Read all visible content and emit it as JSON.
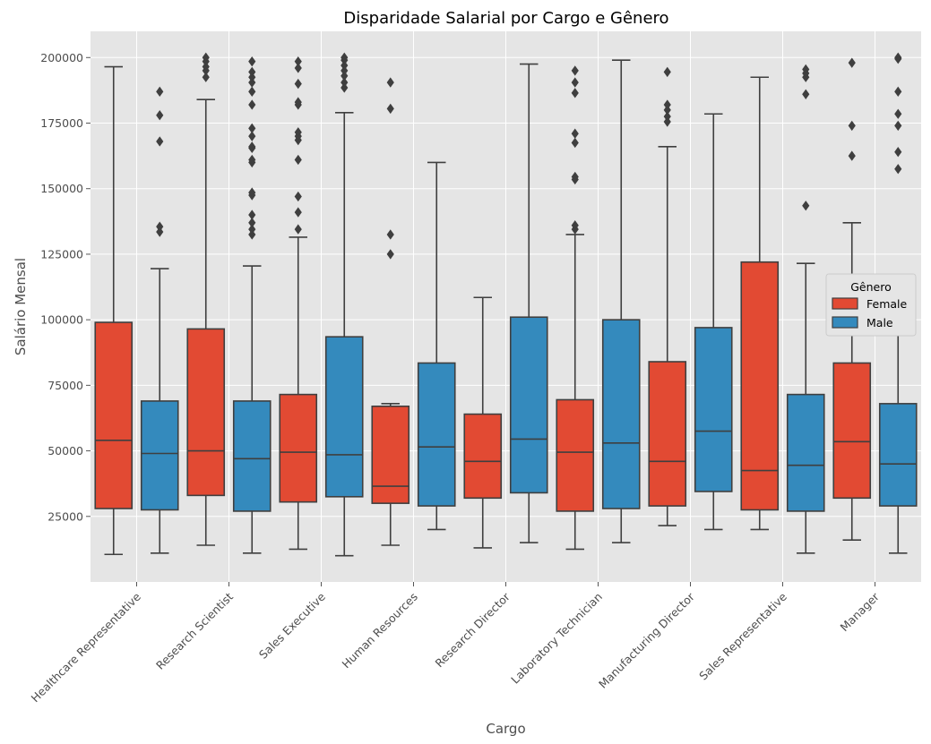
{
  "chart_data": {
    "type": "box",
    "title": "Disparidade Salarial por Cargo e Gênero",
    "xlabel": "Cargo",
    "ylabel": "Salário Mensal",
    "ylim": [
      0,
      210000
    ],
    "yticks": [
      25000,
      50000,
      75000,
      100000,
      125000,
      150000,
      175000,
      200000
    ],
    "ytick_labels": [
      "25000",
      "50000",
      "75000",
      "100000",
      "125000",
      "150000",
      "175000",
      "200000"
    ],
    "grid": true,
    "legend": {
      "title": "Gênero",
      "placement": "right"
    },
    "categories": [
      "Healthcare Representative",
      "Research Scientist",
      "Sales Executive",
      "Human Resources",
      "Research Director",
      "Laboratory Technician",
      "Manufacturing Director",
      "Sales Representative",
      "Manager"
    ],
    "series": [
      {
        "name": "Female",
        "color": "#e24a33",
        "boxes": [
          {
            "whislo": 10500,
            "q1": 28000,
            "med": 54000,
            "q3": 99000,
            "whishi": 196500,
            "fliers": []
          },
          {
            "whislo": 14000,
            "q1": 33000,
            "med": 50000,
            "q3": 96500,
            "whishi": 184000,
            "fliers": [
              192500,
              195000,
              196500,
              198500,
              200000
            ]
          },
          {
            "whislo": 12500,
            "q1": 30500,
            "med": 49500,
            "q3": 71500,
            "whishi": 131500,
            "fliers": [
              134500,
              141000,
              147000,
              161000,
              168500,
              170000,
              171500,
              182000,
              183000,
              190000,
              196000,
              198500
            ]
          },
          {
            "whislo": 14000,
            "q1": 30000,
            "med": 36500,
            "q3": 67000,
            "whishi": 68000,
            "fliers": [
              125000,
              132500,
              180500,
              190500
            ]
          },
          {
            "whislo": 13000,
            "q1": 32000,
            "med": 46000,
            "q3": 64000,
            "whishi": 108500,
            "fliers": []
          },
          {
            "whislo": 12500,
            "q1": 27000,
            "med": 49500,
            "q3": 69500,
            "whishi": 132500,
            "fliers": [
              134500,
              136000,
              153500,
              154500,
              167500,
              171000,
              186500,
              190500,
              195000
            ]
          },
          {
            "whislo": 21500,
            "q1": 29000,
            "med": 46000,
            "q3": 84000,
            "whishi": 166000,
            "fliers": [
              175500,
              177500,
              180000,
              182000,
              194500
            ]
          },
          {
            "whislo": 20000,
            "q1": 27500,
            "med": 42500,
            "q3": 122000,
            "whishi": 192500,
            "fliers": []
          },
          {
            "whislo": 16000,
            "q1": 32000,
            "med": 53500,
            "q3": 83500,
            "whishi": 137000,
            "fliers": [
              162500,
              174000,
              198000
            ]
          }
        ]
      },
      {
        "name": "Male",
        "color": "#348abd",
        "boxes": [
          {
            "whislo": 11000,
            "q1": 27500,
            "med": 49000,
            "q3": 69000,
            "whishi": 119500,
            "fliers": [
              133500,
              135500,
              168000,
              178000,
              187000
            ]
          },
          {
            "whislo": 11000,
            "q1": 27000,
            "med": 47000,
            "q3": 69000,
            "whishi": 120500,
            "fliers": [
              132500,
              134500,
              137000,
              140000,
              147500,
              148500,
              160000,
              161000,
              165500,
              166000,
              170000,
              173000,
              182000,
              187000,
              190500,
              192500,
              194500,
              198500
            ]
          },
          {
            "whislo": 10000,
            "q1": 32500,
            "med": 48500,
            "q3": 93500,
            "whishi": 179000,
            "fliers": [
              188500,
              190500,
              193000,
              195000,
              197000,
              199000,
              200000
            ]
          },
          {
            "whislo": 20000,
            "q1": 29000,
            "med": 51500,
            "q3": 83500,
            "whishi": 160000,
            "fliers": []
          },
          {
            "whislo": 15000,
            "q1": 34000,
            "med": 54500,
            "q3": 101000,
            "whishi": 197500,
            "fliers": []
          },
          {
            "whislo": 15000,
            "q1": 28000,
            "med": 53000,
            "q3": 100000,
            "whishi": 199000,
            "fliers": []
          },
          {
            "whislo": 20000,
            "q1": 34500,
            "med": 57500,
            "q3": 97000,
            "whishi": 178500,
            "fliers": []
          },
          {
            "whislo": 11000,
            "q1": 27000,
            "med": 44500,
            "q3": 71500,
            "whishi": 121500,
            "fliers": [
              143500,
              186000,
              192500,
              194000,
              195500
            ]
          },
          {
            "whislo": 11000,
            "q1": 29000,
            "med": 45000,
            "q3": 68000,
            "whishi": 116500,
            "fliers": [
              157500,
              164000,
              174000,
              178500,
              187000,
              199500,
              200000
            ]
          }
        ]
      }
    ]
  }
}
